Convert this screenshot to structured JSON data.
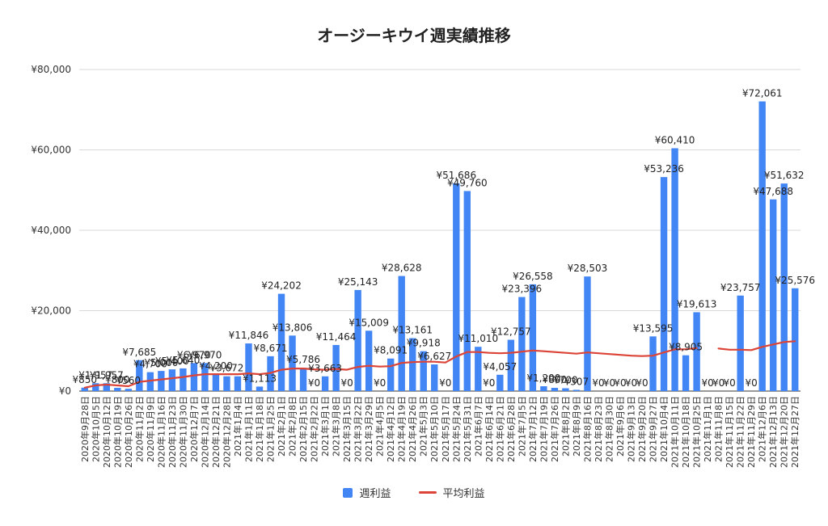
{
  "colors": {
    "bar": "#4285f4",
    "line": "#db4437",
    "grid": "#d9d9d9",
    "text": "#222222"
  },
  "chart_data": {
    "type": "bar",
    "title": "オージーキウイ週実績推移",
    "xlabel": "",
    "ylabel": "",
    "ylim": [
      0,
      80000
    ],
    "yticks": [
      "¥0",
      "¥20,000",
      "¥40,000",
      "¥60,000",
      "¥80,000"
    ],
    "grid": true,
    "legend_position": "bottom",
    "categories": [
      "2020年9月28日",
      "2020年10月5日",
      "2020年10月12日",
      "2020年10月19日",
      "2020年10月26日",
      "2020年11月2日",
      "2020年11月9日",
      "2020年11月16日",
      "2020年11月23日",
      "2020年11月30日",
      "2020年12月7日",
      "2020年12月14日",
      "2020年12月21日",
      "2020年12月28日",
      "2021年1月4日",
      "2021年1月11日",
      "2021年1月18日",
      "2021年1月25日",
      "2021年2月1日",
      "2021年2月8日",
      "2021年2月15日",
      "2021年2月22日",
      "2021年3月1日",
      "2021年3月8日",
      "2021年3月15日",
      "2021年3月22日",
      "2021年3月29日",
      "2021年4月5日",
      "2021年4月12日",
      "2021年4月19日",
      "2021年4月26日",
      "2021年5月3日",
      "2021年5月10日",
      "2021年5月17日",
      "2021年5月24日",
      "2021年5月31日",
      "2021年6月7日",
      "2021年6月14日",
      "2021年6月21日",
      "2021年6月28日",
      "2021年7月5日",
      "2021年7月12日",
      "2021年7月19日",
      "2021年7月26日",
      "2021年8月2日",
      "2021年8月9日",
      "2021年8月16日",
      "2021年8月23日",
      "2021年8月30日",
      "2021年9月6日",
      "2021年9月13日",
      "2021年9月20日",
      "2021年9月27日",
      "2021年10月4日",
      "2021年10月11日",
      "2021年10月18日",
      "2021年10月25日",
      "2021年11月1日",
      "2021年11月8日",
      "2021年11月15日",
      "2021年11月22日",
      "2021年11月29日",
      "2021年12月6日",
      "2021年12月13日",
      "2021年12月20日",
      "2021年12月27日"
    ],
    "series": [
      {
        "name": "週利益",
        "type": "bar",
        "values": [
          850,
          1957,
          1957,
          800,
          560,
          7685,
          4700,
          5000,
          5400,
          5640,
          6970,
          6970,
          4200,
          3672,
          3672,
          11846,
          1113,
          8671,
          24202,
          13806,
          5786,
          0,
          3663,
          11464,
          0,
          25143,
          15009,
          0,
          8091,
          28628,
          13161,
          9918,
          6627,
          0,
          51686,
          49760,
          11010,
          0,
          4057,
          12757,
          23396,
          26558,
          1200,
          800,
          700,
          307,
          28503,
          0,
          0,
          0,
          0,
          0,
          13595,
          53236,
          60410,
          8905,
          19613,
          0,
          0,
          0,
          23757,
          0,
          72061,
          47688,
          51632,
          25576
        ],
        "labels": [
          "¥850",
          "¥1,957",
          "¥1,957",
          "¥800",
          "¥560",
          "¥7,685",
          "¥4,700",
          "¥5,000",
          "¥5,400",
          "¥5,640",
          "¥6,970",
          "¥6,970",
          "¥4,200",
          "¥3,672",
          "",
          "¥11,846",
          "¥1,113",
          "¥8,671",
          "¥24,202",
          "¥13,806",
          "¥5,786",
          "¥0",
          "¥3,663",
          "¥11,464",
          "¥0",
          "¥25,143",
          "¥15,009",
          "¥0",
          "¥8,091",
          "¥28,628",
          "¥13,161",
          "¥9,918",
          "¥6,627",
          "¥0",
          "¥51,686",
          "¥49,760",
          "¥11,010",
          "¥0",
          "¥4,057",
          "¥12,757",
          "¥23,396",
          "¥26,558",
          "¥1,200",
          "¥800",
          "¥700",
          "¥307",
          "¥28,503",
          "¥0",
          "¥0",
          "¥0",
          "¥0",
          "¥0",
          "¥13,595",
          "¥53,236",
          "¥60,410",
          "¥8,905",
          "¥19,613",
          "¥0",
          "¥0",
          "¥0",
          "¥23,757",
          "¥0",
          "¥72,061",
          "¥47,688",
          "¥51,632",
          "¥25,576"
        ]
      },
      {
        "name": "平均利益",
        "type": "line",
        "values": [
          850,
          1400,
          1600,
          1400,
          1200,
          2300,
          2600,
          2900,
          3200,
          3500,
          3900,
          4200,
          4200,
          4200,
          4200,
          4400,
          4200,
          4500,
          5300,
          5600,
          5600,
          5400,
          5300,
          5500,
          5300,
          6000,
          6300,
          6100,
          6200,
          7000,
          7200,
          7300,
          7300,
          7100,
          8600,
          9700,
          9700,
          9500,
          9400,
          9500,
          9800,
          10100,
          9900,
          9700,
          9500,
          9300,
          9600,
          9400,
          9200,
          9000,
          8800,
          8700,
          8800,
          9600,
          10400,
          10400,
          10700,
          null,
          10600,
          10300,
          10300,
          10200,
          11000,
          11600,
          12200,
          12400
        ]
      }
    ]
  }
}
